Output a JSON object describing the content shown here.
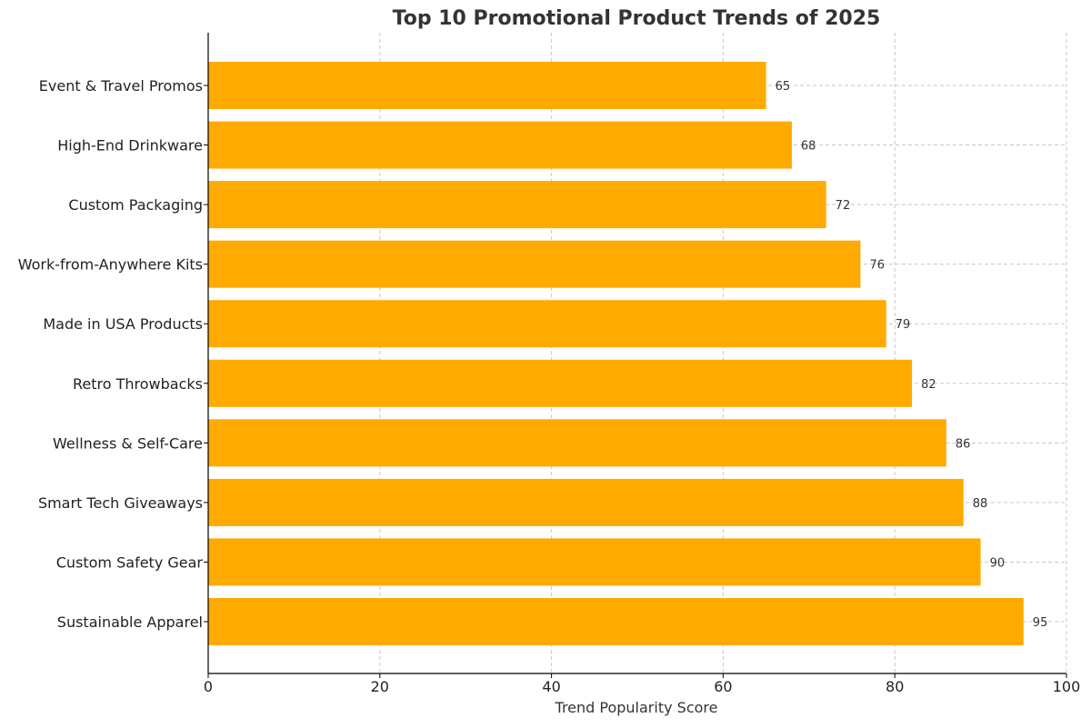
{
  "chart_data": {
    "type": "bar",
    "orientation": "horizontal",
    "title": "Top 10 Promotional Product Trends of 2025",
    "xlabel": "Trend Popularity Score",
    "ylabel": "",
    "xlim": [
      0,
      100
    ],
    "xticks": [
      0,
      20,
      40,
      60,
      80,
      100
    ],
    "grid": true,
    "bar_color": "#FFAA00",
    "categories": [
      "Sustainable Apparel",
      "Custom Safety Gear",
      "Smart Tech Giveaways",
      "Wellness & Self-Care",
      "Retro Throwbacks",
      "Made in USA Products",
      "Work-from-Anywhere Kits",
      "Custom Packaging",
      "High-End Drinkware",
      "Event & Travel Promos"
    ],
    "values": [
      95,
      90,
      88,
      86,
      82,
      79,
      76,
      72,
      68,
      65
    ]
  }
}
